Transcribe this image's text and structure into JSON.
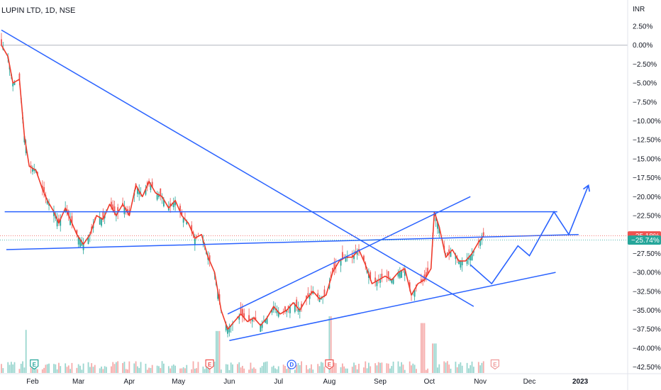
{
  "chart_data": {
    "type": "candlestick",
    "title": "LUPIN LTD, 1D, NSE",
    "currency": "INR",
    "y_unit": "%",
    "ylim": [
      -43.5,
      3.5
    ],
    "y_ticks": [
      {
        "v": 2.5,
        "label": "2.50%"
      },
      {
        "v": 0,
        "label": "0.00%"
      },
      {
        "v": -2.5,
        "label": "−2.50%"
      },
      {
        "v": -5,
        "label": "−5.00%"
      },
      {
        "v": -7.5,
        "label": "−7.50%"
      },
      {
        "v": -10,
        "label": "−10.00%"
      },
      {
        "v": -12.5,
        "label": "−12.50%"
      },
      {
        "v": -15,
        "label": "−15.00%"
      },
      {
        "v": -17.5,
        "label": "−17.50%"
      },
      {
        "v": -20,
        "label": "−20.00%"
      },
      {
        "v": -22.5,
        "label": "−22.50%"
      },
      {
        "v": -25,
        "label": "−25.00%"
      },
      {
        "v": -27.5,
        "label": "−27.50%"
      },
      {
        "v": -30,
        "label": "−30.00%"
      },
      {
        "v": -32.5,
        "label": "−32.50%"
      },
      {
        "v": -35,
        "label": "−35.00%"
      },
      {
        "v": -37.5,
        "label": "−37.50%"
      },
      {
        "v": -40,
        "label": "−40.00%"
      },
      {
        "v": -42.5,
        "label": "−42.50%"
      }
    ],
    "x_ticks": [
      {
        "label": "Feb",
        "x": "2022-02-01"
      },
      {
        "label": "Mar",
        "x": "2022-03-01"
      },
      {
        "label": "Apr",
        "x": "2022-04-01"
      },
      {
        "label": "May",
        "x": "2022-05-01"
      },
      {
        "label": "Jun",
        "x": "2022-06-01"
      },
      {
        "label": "Jul",
        "x": "2022-07-01"
      },
      {
        "label": "Aug",
        "x": "2022-08-01"
      },
      {
        "label": "Sep",
        "x": "2022-09-01"
      },
      {
        "label": "Oct",
        "x": "2022-10-01"
      },
      {
        "label": "Nov",
        "x": "2022-11-01"
      },
      {
        "label": "Dec",
        "x": "2022-12-01"
      },
      {
        "label": "2023",
        "x": "2023-01-01"
      }
    ],
    "price_path": [
      [
        "2022-01-13",
        0.0
      ],
      [
        "2022-01-17",
        -1.5
      ],
      [
        "2022-01-20",
        -5.0
      ],
      [
        "2022-01-24",
        -4.5
      ],
      [
        "2022-01-27",
        -12.0
      ],
      [
        "2022-01-30",
        -16.0
      ],
      [
        "2022-02-03",
        -16.5
      ],
      [
        "2022-02-07",
        -19.0
      ],
      [
        "2022-02-10",
        -20.5
      ],
      [
        "2022-02-14",
        -22.0
      ],
      [
        "2022-02-17",
        -23.5
      ],
      [
        "2022-02-21",
        -21.5
      ],
      [
        "2022-02-24",
        -23.0
      ],
      [
        "2022-02-28",
        -25.0
      ],
      [
        "2022-03-04",
        -26.3
      ],
      [
        "2022-03-08",
        -25.0
      ],
      [
        "2022-03-12",
        -22.5
      ],
      [
        "2022-03-16",
        -23.0
      ],
      [
        "2022-03-20",
        -21.0
      ],
      [
        "2022-03-24",
        -22.5
      ],
      [
        "2022-03-28",
        -21.0
      ],
      [
        "2022-04-01",
        -22.5
      ],
      [
        "2022-04-05",
        -18.5
      ],
      [
        "2022-04-09",
        -20.0
      ],
      [
        "2022-04-13",
        -18.0
      ],
      [
        "2022-04-17",
        -19.5
      ],
      [
        "2022-04-21",
        -20.0
      ],
      [
        "2022-04-25",
        -21.5
      ],
      [
        "2022-04-29",
        -20.5
      ],
      [
        "2022-05-03",
        -22.5
      ],
      [
        "2022-05-07",
        -23.5
      ],
      [
        "2022-05-11",
        -25.5
      ],
      [
        "2022-05-15",
        -25.0
      ],
      [
        "2022-05-19",
        -28.0
      ],
      [
        "2022-05-23",
        -30.0
      ],
      [
        "2022-05-27",
        -35.0
      ],
      [
        "2022-05-31",
        -37.5
      ],
      [
        "2022-06-04",
        -36.5
      ],
      [
        "2022-06-08",
        -35.5
      ],
      [
        "2022-06-12",
        -36.5
      ],
      [
        "2022-06-16",
        -36.0
      ],
      [
        "2022-06-20",
        -37.0
      ],
      [
        "2022-06-24",
        -36.0
      ],
      [
        "2022-06-28",
        -34.5
      ],
      [
        "2022-07-02",
        -35.5
      ],
      [
        "2022-07-06",
        -35.0
      ],
      [
        "2022-07-10",
        -34.0
      ],
      [
        "2022-07-14",
        -35.0
      ],
      [
        "2022-07-18",
        -33.5
      ],
      [
        "2022-07-22",
        -32.5
      ],
      [
        "2022-07-26",
        -33.5
      ],
      [
        "2022-07-30",
        -33.0
      ],
      [
        "2022-08-03",
        -30.0
      ],
      [
        "2022-08-07",
        -28.5
      ],
      [
        "2022-08-11",
        -28.0
      ],
      [
        "2022-08-15",
        -28.0
      ],
      [
        "2022-08-19",
        -27.0
      ],
      [
        "2022-08-23",
        -29.0
      ],
      [
        "2022-08-27",
        -31.5
      ],
      [
        "2022-08-31",
        -31.0
      ],
      [
        "2022-09-04",
        -30.5
      ],
      [
        "2022-09-08",
        -31.0
      ],
      [
        "2022-09-12",
        -30.0
      ],
      [
        "2022-09-16",
        -29.5
      ],
      [
        "2022-09-20",
        -33.0
      ],
      [
        "2022-09-24",
        -31.5
      ],
      [
        "2022-09-28",
        -31.0
      ],
      [
        "2022-10-02",
        -29.5
      ],
      [
        "2022-10-04",
        -22.0
      ],
      [
        "2022-10-07",
        -24.0
      ],
      [
        "2022-10-11",
        -28.0
      ],
      [
        "2022-10-15",
        -27.0
      ],
      [
        "2022-10-19",
        -28.5
      ],
      [
        "2022-10-23",
        -28.5
      ],
      [
        "2022-10-27",
        -27.5
      ],
      [
        "2022-10-31",
        -26.0
      ],
      [
        "2022-11-03",
        -25.2
      ]
    ],
    "volume_spikes": [
      {
        "x": "2022-01-29",
        "level": 0.76
      },
      {
        "x": "2022-05-25",
        "level": 0.74
      },
      {
        "x": "2022-08-01",
        "level": 1.0
      },
      {
        "x": "2022-09-27",
        "level": 0.88
      },
      {
        "x": "2022-10-04",
        "level": 0.52
      }
    ],
    "event_markers": [
      {
        "x": "2022-02-02",
        "label": "E",
        "color": "#26a69a"
      },
      {
        "x": "2022-05-20",
        "label": "E",
        "color": "#ef5350"
      },
      {
        "x": "2022-07-09",
        "label": "D",
        "color": "#2962ff"
      },
      {
        "x": "2022-08-01",
        "label": "E",
        "color": "#ef5350"
      },
      {
        "x": "2022-11-10",
        "label": "E",
        "color": "#ef9a9a"
      }
    ],
    "drawings": {
      "main_downtrend": [
        [
          "2022-01-13",
          2.0
        ],
        [
          "2022-10-28",
          -34.5
        ]
      ],
      "horizontal_resistance": [
        [
          "2022-01-15",
          -22.0
        ],
        [
          "2022-12-18",
          -22.0
        ]
      ],
      "rising_support": [
        [
          "2022-01-16",
          -27.0
        ],
        [
          "2022-12-31",
          -25.0
        ]
      ],
      "channel_lower": [
        [
          "2022-06-01",
          -39.0
        ],
        [
          "2022-12-17",
          -30.0
        ]
      ],
      "channel_upper": [
        [
          "2022-05-31",
          -35.5
        ],
        [
          "2022-10-26",
          -20.0
        ]
      ],
      "projection": [
        [
          "2022-10-26",
          -29.0
        ],
        [
          "2022-11-08",
          -31.5
        ],
        [
          "2022-11-24",
          -26.5
        ],
        [
          "2022-12-01",
          -27.8
        ],
        [
          "2022-12-16",
          -22.0
        ],
        [
          "2022-12-25",
          -25.0
        ],
        [
          "2023-01-06",
          -18.5
        ]
      ]
    },
    "last_labels": [
      {
        "value": -25.18,
        "label": "−25.18%",
        "color": "#ef5350"
      },
      {
        "value": -25.74,
        "label": "−25.74%",
        "color": "#26a69a"
      }
    ],
    "colors": {
      "up": "#26a69a",
      "down": "#ef5350",
      "line": "#2962ff",
      "trace": "#ef3b2c"
    },
    "grid": false,
    "legend": "none"
  }
}
